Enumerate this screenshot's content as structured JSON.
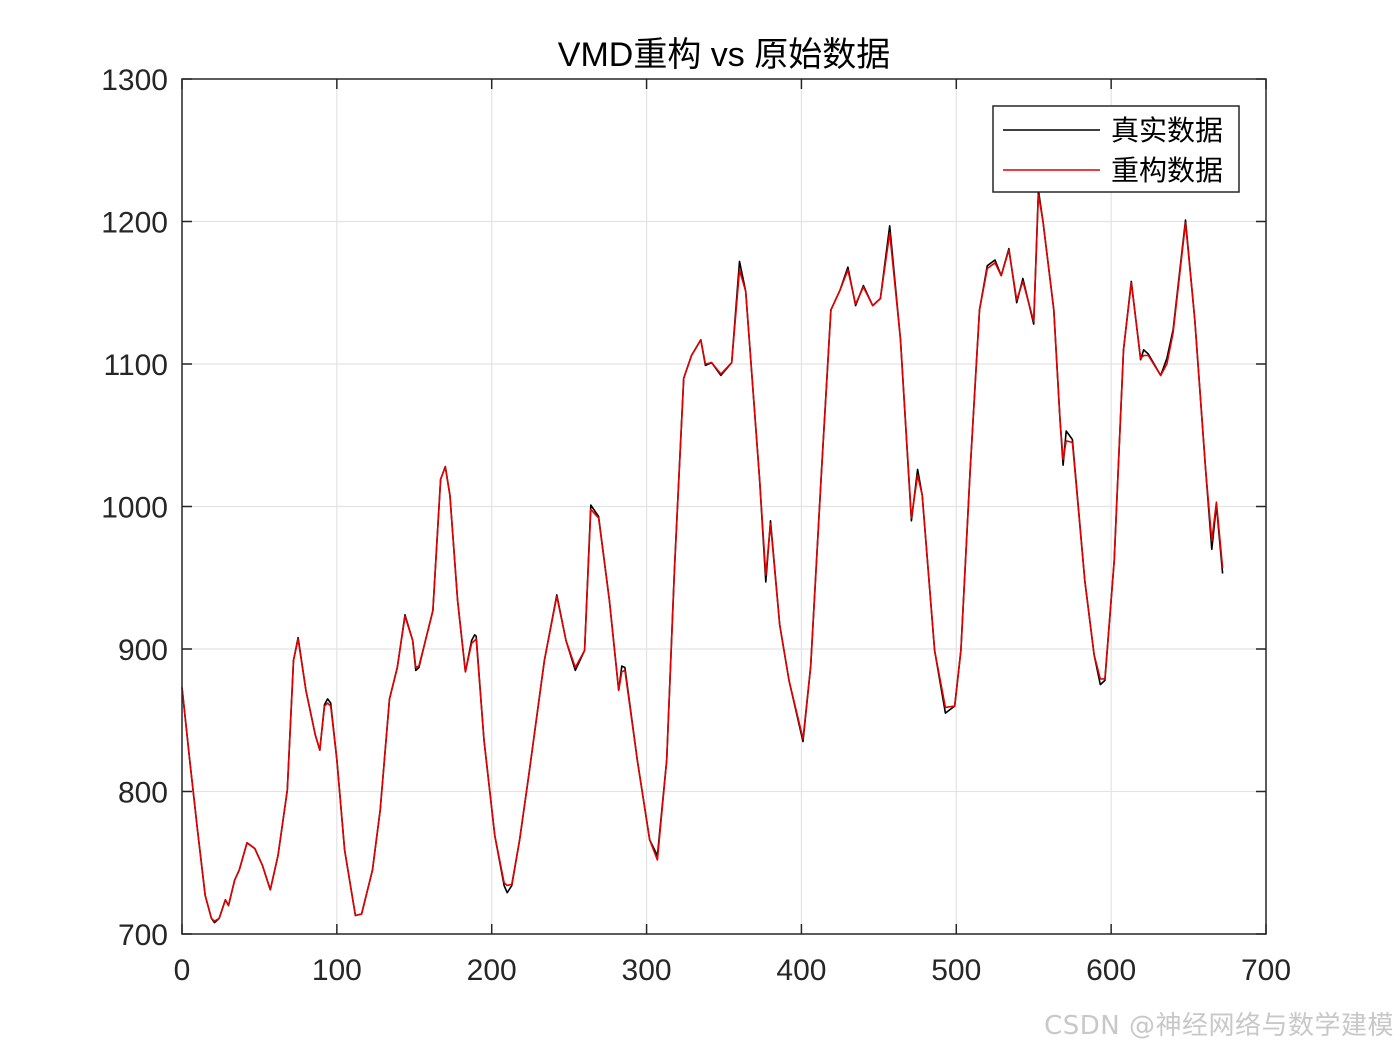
{
  "figure": {
    "title": "VMD重构 vs 原始数据",
    "watermark": "CSDN @神经网络与数学建模"
  },
  "legend": {
    "items": [
      {
        "label": "真实数据",
        "color": "#000000"
      },
      {
        "label": "重构数据",
        "color": "#e00000"
      }
    ]
  },
  "axes": {
    "x_ticks": [
      "0",
      "100",
      "200",
      "300",
      "400",
      "500",
      "600",
      "700"
    ],
    "y_ticks": [
      "700",
      "800",
      "900",
      "1000",
      "1100",
      "1200",
      "1300"
    ]
  },
  "chart_data": {
    "type": "line",
    "title": "VMD重构 vs 原始数据",
    "xlabel": "",
    "ylabel": "",
    "xlim": [
      0,
      700
    ],
    "ylim": [
      700,
      1300
    ],
    "grid": true,
    "legend_position": "northeast",
    "x_ticks": [
      0,
      100,
      200,
      300,
      400,
      500,
      600,
      700
    ],
    "y_ticks": [
      700,
      800,
      900,
      1000,
      1100,
      1200,
      1300
    ],
    "series": [
      {
        "name": "真实数据",
        "color": "#000000",
        "points": [
          [
            0,
            873
          ],
          [
            5,
            822
          ],
          [
            10,
            773
          ],
          [
            15,
            727
          ],
          [
            19,
            711
          ],
          [
            21,
            708
          ],
          [
            24,
            711
          ],
          [
            28,
            724
          ],
          [
            30,
            720
          ],
          [
            34,
            738
          ],
          [
            37,
            745
          ],
          [
            42,
            764
          ],
          [
            47,
            760
          ],
          [
            52,
            748
          ],
          [
            57,
            731
          ],
          [
            62,
            755
          ],
          [
            68,
            801
          ],
          [
            72,
            892
          ],
          [
            75,
            908
          ],
          [
            80,
            871
          ],
          [
            86,
            840
          ],
          [
            89,
            829
          ],
          [
            92,
            861
          ],
          [
            94,
            865
          ],
          [
            96,
            862
          ],
          [
            100,
            822
          ],
          [
            105,
            759
          ],
          [
            112,
            713
          ],
          [
            116,
            714
          ],
          [
            123,
            745
          ],
          [
            128,
            787
          ],
          [
            134,
            865
          ],
          [
            139,
            887
          ],
          [
            144,
            924
          ],
          [
            149,
            906
          ],
          [
            151,
            885
          ],
          [
            153,
            887
          ],
          [
            157,
            905
          ],
          [
            162,
            927
          ],
          [
            167,
            1019
          ],
          [
            170,
            1028
          ],
          [
            173,
            1008
          ],
          [
            178,
            934
          ],
          [
            183,
            884
          ],
          [
            187,
            906
          ],
          [
            189,
            910
          ],
          [
            190,
            909
          ],
          [
            195,
            836
          ],
          [
            202,
            769
          ],
          [
            208,
            734
          ],
          [
            210,
            729
          ],
          [
            213,
            734
          ],
          [
            218,
            766
          ],
          [
            224,
            812
          ],
          [
            234,
            892
          ],
          [
            242,
            938
          ],
          [
            248,
            906
          ],
          [
            254,
            885
          ],
          [
            260,
            899
          ],
          [
            264,
            1001
          ],
          [
            269,
            993
          ],
          [
            276,
            934
          ],
          [
            282,
            871
          ],
          [
            284,
            888
          ],
          [
            286,
            887
          ],
          [
            294,
            822
          ],
          [
            302,
            766
          ],
          [
            307,
            755
          ],
          [
            313,
            822
          ],
          [
            318,
            955
          ],
          [
            324,
            1090
          ],
          [
            329,
            1106
          ],
          [
            335,
            1117
          ],
          [
            338,
            1099
          ],
          [
            342,
            1101
          ],
          [
            348,
            1092
          ],
          [
            355,
            1101
          ],
          [
            360,
            1172
          ],
          [
            364,
            1151
          ],
          [
            373,
            1019
          ],
          [
            377,
            947
          ],
          [
            380,
            990
          ],
          [
            386,
            917
          ],
          [
            392,
            878
          ],
          [
            401,
            835
          ],
          [
            406,
            888
          ],
          [
            413,
            1026
          ],
          [
            419,
            1138
          ],
          [
            425,
            1152
          ],
          [
            430,
            1168
          ],
          [
            435,
            1141
          ],
          [
            440,
            1155
          ],
          [
            446,
            1141
          ],
          [
            451,
            1146
          ],
          [
            457,
            1197
          ],
          [
            464,
            1117
          ],
          [
            471,
            990
          ],
          [
            475,
            1026
          ],
          [
            478,
            1008
          ],
          [
            486,
            899
          ],
          [
            493,
            855
          ],
          [
            499,
            860
          ],
          [
            503,
            899
          ],
          [
            509,
            1026
          ],
          [
            515,
            1138
          ],
          [
            520,
            1169
          ],
          [
            525,
            1173
          ],
          [
            529,
            1162
          ],
          [
            534,
            1181
          ],
          [
            539,
            1143
          ],
          [
            543,
            1160
          ],
          [
            550,
            1128
          ],
          [
            553,
            1222
          ],
          [
            556,
            1200
          ],
          [
            563,
            1138
          ],
          [
            567,
            1061
          ],
          [
            569,
            1029
          ],
          [
            571,
            1053
          ],
          [
            575,
            1047
          ],
          [
            583,
            948
          ],
          [
            589,
            896
          ],
          [
            593,
            875
          ],
          [
            596,
            878
          ],
          [
            602,
            962
          ],
          [
            608,
            1110
          ],
          [
            613,
            1158
          ],
          [
            619,
            1103
          ],
          [
            621,
            1110
          ],
          [
            624,
            1107
          ],
          [
            632,
            1092
          ],
          [
            636,
            1104
          ],
          [
            640,
            1124
          ],
          [
            648,
            1201
          ],
          [
            654,
            1131
          ],
          [
            661,
            1026
          ],
          [
            665,
            970
          ],
          [
            668,
            1001
          ],
          [
            672,
            953
          ]
        ]
      },
      {
        "name": "重构数据",
        "color": "#e00000",
        "points": [
          [
            0,
            873
          ],
          [
            5,
            822
          ],
          [
            10,
            773
          ],
          [
            15,
            727
          ],
          [
            19,
            711
          ],
          [
            21,
            709
          ],
          [
            24,
            711
          ],
          [
            28,
            724
          ],
          [
            30,
            720
          ],
          [
            34,
            738
          ],
          [
            37,
            745
          ],
          [
            42,
            764
          ],
          [
            47,
            760
          ],
          [
            52,
            748
          ],
          [
            57,
            731
          ],
          [
            62,
            755
          ],
          [
            68,
            801
          ],
          [
            72,
            892
          ],
          [
            75,
            907
          ],
          [
            80,
            871
          ],
          [
            86,
            840
          ],
          [
            89,
            829
          ],
          [
            92,
            860
          ],
          [
            94,
            862
          ],
          [
            96,
            860
          ],
          [
            100,
            822
          ],
          [
            105,
            759
          ],
          [
            112,
            713
          ],
          [
            116,
            714
          ],
          [
            123,
            745
          ],
          [
            128,
            787
          ],
          [
            134,
            865
          ],
          [
            139,
            887
          ],
          [
            144,
            923
          ],
          [
            149,
            906
          ],
          [
            151,
            887
          ],
          [
            153,
            888
          ],
          [
            157,
            905
          ],
          [
            162,
            927
          ],
          [
            167,
            1019
          ],
          [
            170,
            1028
          ],
          [
            173,
            1008
          ],
          [
            178,
            934
          ],
          [
            183,
            884
          ],
          [
            187,
            904
          ],
          [
            189,
            906
          ],
          [
            190,
            907
          ],
          [
            195,
            836
          ],
          [
            202,
            769
          ],
          [
            208,
            736
          ],
          [
            210,
            734
          ],
          [
            213,
            735
          ],
          [
            218,
            766
          ],
          [
            224,
            812
          ],
          [
            234,
            892
          ],
          [
            242,
            937
          ],
          [
            248,
            906
          ],
          [
            254,
            887
          ],
          [
            260,
            899
          ],
          [
            264,
            998
          ],
          [
            269,
            992
          ],
          [
            276,
            934
          ],
          [
            282,
            871
          ],
          [
            284,
            884
          ],
          [
            286,
            885
          ],
          [
            294,
            822
          ],
          [
            302,
            766
          ],
          [
            307,
            752
          ],
          [
            313,
            822
          ],
          [
            318,
            955
          ],
          [
            324,
            1090
          ],
          [
            329,
            1106
          ],
          [
            335,
            1117
          ],
          [
            338,
            1100
          ],
          [
            342,
            1101
          ],
          [
            348,
            1093
          ],
          [
            355,
            1101
          ],
          [
            360,
            1166
          ],
          [
            364,
            1151
          ],
          [
            373,
            1019
          ],
          [
            377,
            952
          ],
          [
            380,
            988
          ],
          [
            386,
            917
          ],
          [
            392,
            878
          ],
          [
            401,
            837
          ],
          [
            406,
            888
          ],
          [
            413,
            1026
          ],
          [
            419,
            1138
          ],
          [
            425,
            1152
          ],
          [
            430,
            1166
          ],
          [
            435,
            1142
          ],
          [
            440,
            1154
          ],
          [
            446,
            1141
          ],
          [
            451,
            1146
          ],
          [
            457,
            1192
          ],
          [
            464,
            1117
          ],
          [
            471,
            992
          ],
          [
            475,
            1022
          ],
          [
            478,
            1008
          ],
          [
            486,
            899
          ],
          [
            493,
            859
          ],
          [
            499,
            860
          ],
          [
            503,
            899
          ],
          [
            509,
            1026
          ],
          [
            515,
            1138
          ],
          [
            520,
            1167
          ],
          [
            525,
            1171
          ],
          [
            529,
            1162
          ],
          [
            534,
            1180
          ],
          [
            539,
            1145
          ],
          [
            543,
            1158
          ],
          [
            550,
            1130
          ],
          [
            553,
            1219
          ],
          [
            556,
            1200
          ],
          [
            563,
            1138
          ],
          [
            567,
            1061
          ],
          [
            569,
            1033
          ],
          [
            571,
            1046
          ],
          [
            575,
            1045
          ],
          [
            583,
            948
          ],
          [
            589,
            896
          ],
          [
            593,
            879
          ],
          [
            596,
            879
          ],
          [
            602,
            962
          ],
          [
            608,
            1110
          ],
          [
            613,
            1157
          ],
          [
            619,
            1104
          ],
          [
            621,
            1106
          ],
          [
            624,
            1106
          ],
          [
            632,
            1092
          ],
          [
            636,
            1100
          ],
          [
            640,
            1122
          ],
          [
            648,
            1199
          ],
          [
            654,
            1131
          ],
          [
            661,
            1026
          ],
          [
            665,
            976
          ],
          [
            668,
            1003
          ],
          [
            672,
            957
          ]
        ]
      }
    ]
  }
}
